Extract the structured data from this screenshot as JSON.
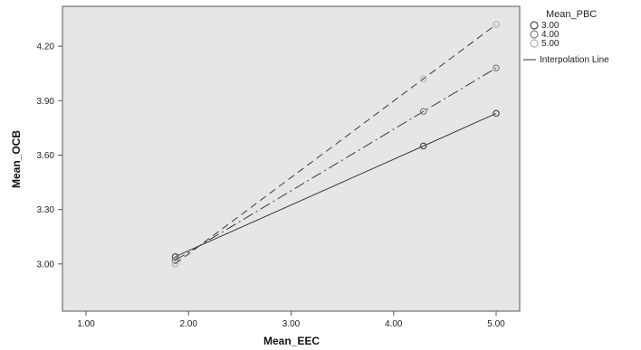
{
  "chart_data": {
    "type": "line",
    "xlabel": "Mean_EEC",
    "ylabel": "Mean_OCB",
    "xlim": [
      1.0,
      5.0
    ],
    "ylim": [
      2.74,
      4.42
    ],
    "x_ticks": [
      "1.00",
      "2.00",
      "3.00",
      "4.00",
      "5.00"
    ],
    "y_ticks": [
      "3.00",
      "3.30",
      "3.60",
      "3.90",
      "4.20"
    ],
    "plot_background": "#e6e6e6",
    "legend": {
      "title": "Mean_PBC",
      "placement": "right",
      "line_label": "Interpolation Line"
    },
    "series": [
      {
        "name": "3.00",
        "line_style": "solid",
        "marker_color": "#4d4d4d",
        "x": [
          1.87,
          4.29,
          5.0
        ],
        "y": [
          3.04,
          3.65,
          3.83
        ]
      },
      {
        "name": "4.00",
        "line_style": "dashdot",
        "marker_color": "#808080",
        "x": [
          1.87,
          4.29,
          5.0
        ],
        "y": [
          3.02,
          3.84,
          4.08
        ]
      },
      {
        "name": "5.00",
        "line_style": "dashed",
        "marker_color": "#b3b3b3",
        "x": [
          1.87,
          4.29,
          5.0
        ],
        "y": [
          3.0,
          4.02,
          4.32
        ]
      }
    ]
  }
}
